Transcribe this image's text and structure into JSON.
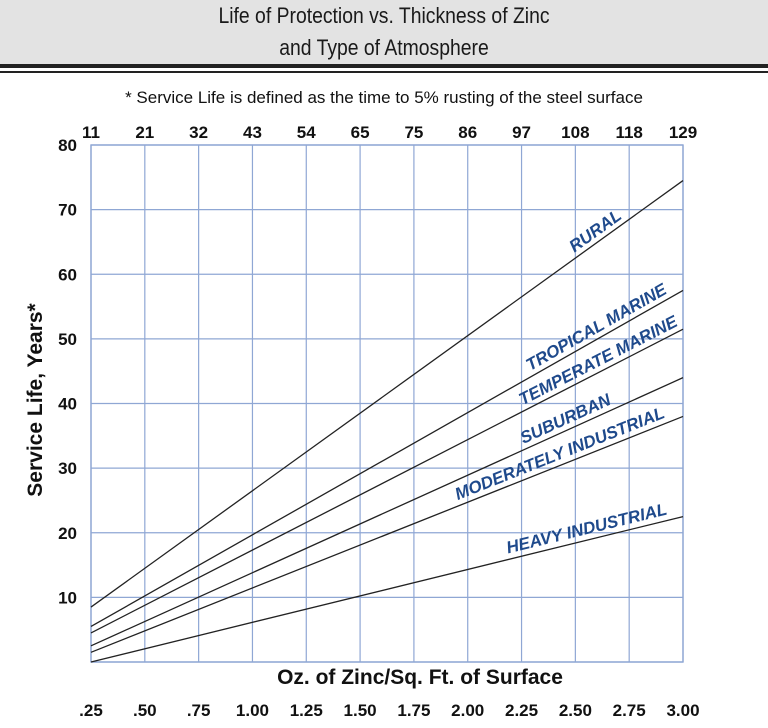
{
  "header": {
    "title_line1": "Life of Protection vs. Thickness of Zinc",
    "title_line2": "and Type of Atmosphere"
  },
  "footnote": "* Service Life is defined as the time to 5% rusting of the steel surface",
  "chart_data": {
    "type": "line",
    "title": "Life of Protection vs. Thickness of Zinc and Type of Atmosphere",
    "xlabel": "Oz. of Zinc/Sq. Ft. of Surface",
    "ylabel": "Service Life, Years*",
    "x_ticks": [
      ".25",
      ".50",
      ".75",
      "1.00",
      "1.25",
      "1.50",
      "1.75",
      "2.00",
      "2.25",
      "2.50",
      "2.75",
      "3.00"
    ],
    "x_ticks_top": [
      "11",
      "21",
      "32",
      "43",
      "54",
      "65",
      "75",
      "86",
      "97",
      "108",
      "118",
      "129"
    ],
    "x_values": [
      0.25,
      0.5,
      0.75,
      1.0,
      1.25,
      1.5,
      1.75,
      2.0,
      2.25,
      2.5,
      2.75,
      3.0
    ],
    "y_ticks": [
      "10",
      "20",
      "30",
      "40",
      "50",
      "60",
      "70",
      "80"
    ],
    "xlim": [
      0.25,
      3.0
    ],
    "ylim": [
      0,
      80
    ],
    "grid": true,
    "series": [
      {
        "name": "RURAL",
        "x": [
          0.25,
          3.0
        ],
        "y": [
          8.5,
          74.5
        ]
      },
      {
        "name": "TROPICAL MARINE",
        "x": [
          0.25,
          3.0
        ],
        "y": [
          5.5,
          57.5
        ]
      },
      {
        "name": "TEMPERATE MARINE",
        "x": [
          0.25,
          3.0
        ],
        "y": [
          4.5,
          51.5
        ]
      },
      {
        "name": "SUBURBAN",
        "x": [
          0.25,
          3.0
        ],
        "y": [
          2.5,
          44
        ]
      },
      {
        "name": "MODERATELY INDUSTRIAL",
        "x": [
          0.25,
          3.0
        ],
        "y": [
          1.5,
          38
        ]
      },
      {
        "name": "HEAVY INDUSTRIAL",
        "x": [
          0.25,
          3.0
        ],
        "y": [
          0,
          22.5
        ]
      }
    ],
    "colors": {
      "grid": "#8fa7d4",
      "line": "#222222",
      "label": "#1f4a8c"
    }
  }
}
